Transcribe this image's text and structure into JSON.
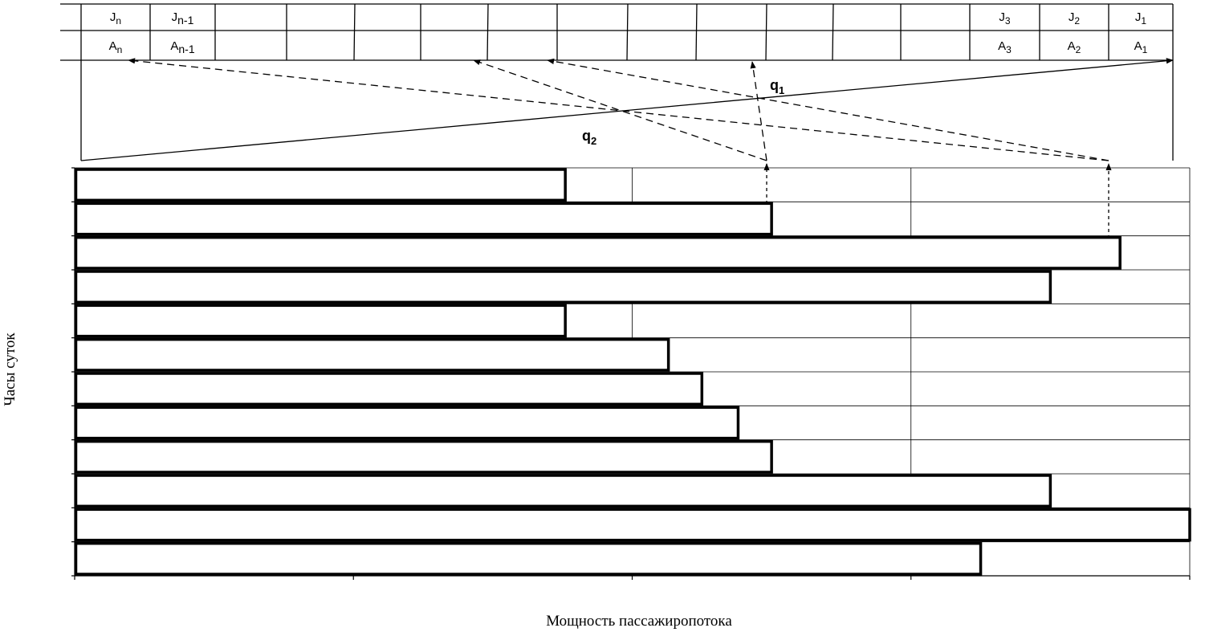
{
  "table": {
    "top_row": [
      {
        "main": "J",
        "sub": "n"
      },
      {
        "main": "J",
        "sub": "n-1"
      },
      {
        "main": "",
        "sub": ""
      },
      {
        "main": "",
        "sub": ""
      },
      {
        "main": "",
        "sub": ""
      },
      {
        "main": "",
        "sub": ""
      },
      {
        "main": "",
        "sub": ""
      },
      {
        "main": "",
        "sub": ""
      },
      {
        "main": "",
        "sub": ""
      },
      {
        "main": "",
        "sub": ""
      },
      {
        "main": "",
        "sub": ""
      },
      {
        "main": "",
        "sub": ""
      },
      {
        "main": "",
        "sub": ""
      },
      {
        "main": "J",
        "sub": "3"
      },
      {
        "main": "J",
        "sub": "2"
      },
      {
        "main": "J",
        "sub": "1"
      }
    ],
    "bottom_row": [
      {
        "main": "A",
        "sub": "n"
      },
      {
        "main": "A",
        "sub": "n-1"
      },
      {
        "main": "",
        "sub": ""
      },
      {
        "main": "",
        "sub": ""
      },
      {
        "main": "",
        "sub": ""
      },
      {
        "main": "",
        "sub": ""
      },
      {
        "main": "",
        "sub": ""
      },
      {
        "main": "",
        "sub": ""
      },
      {
        "main": "",
        "sub": ""
      },
      {
        "main": "",
        "sub": ""
      },
      {
        "main": "",
        "sub": ""
      },
      {
        "main": "",
        "sub": ""
      },
      {
        "main": "",
        "sub": ""
      },
      {
        "main": "A",
        "sub": "3"
      },
      {
        "main": "A",
        "sub": "2"
      },
      {
        "main": "A",
        "sub": "1"
      }
    ]
  },
  "flows": {
    "q1": {
      "main": "q",
      "sub": "1"
    },
    "q2": {
      "main": "q",
      "sub": "2"
    }
  },
  "axes": {
    "y_label": "Часы суток",
    "x_label": "Мощность пассажиропотока"
  },
  "chart_data": {
    "type": "bar",
    "orientation": "horizontal",
    "xlabel": "Мощность пассажиропотока",
    "ylabel": "Часы суток",
    "xlim": [
      0,
      4
    ],
    "values": [
      1.76,
      2.5,
      3.75,
      3.5,
      1.76,
      2.13,
      2.25,
      2.38,
      2.5,
      3.5,
      4.0,
      3.25
    ],
    "highlighted_rows": [
      1,
      2
    ]
  }
}
